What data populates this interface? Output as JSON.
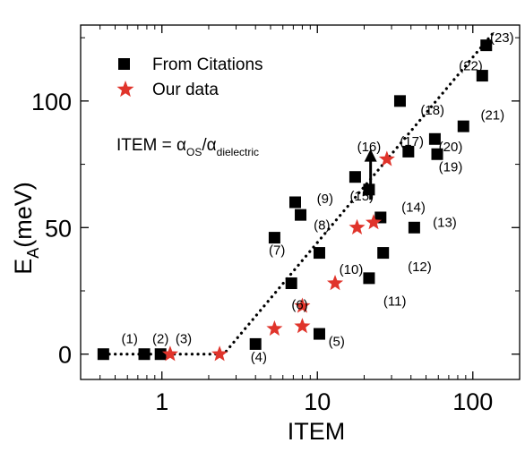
{
  "chart_data": {
    "type": "scatter",
    "xscale": "log",
    "xlim": [
      0.3,
      200
    ],
    "ylim": [
      -10,
      130
    ],
    "xlabel": "ITEM",
    "ylabel": "E",
    "ylabel_sub": "A",
    "ylabel_unit": "(meV)",
    "x_ticks": [
      {
        "value": 1,
        "label": "1"
      },
      {
        "value": 10,
        "label": "10"
      },
      {
        "value": 100,
        "label": "100"
      }
    ],
    "y_ticks": [
      {
        "value": 0,
        "label": "0"
      },
      {
        "value": 50,
        "label": "50"
      },
      {
        "value": 100,
        "label": "100"
      }
    ],
    "legend": {
      "placement": "top-left",
      "entries": [
        {
          "label": "From Citations",
          "marker": "square",
          "color": "#000000"
        },
        {
          "label": "Our data",
          "marker": "star",
          "color": "#e0342b"
        }
      ]
    },
    "equation": {
      "lhs": "ITEM = α",
      "sub1": "OS",
      "mid": "/α",
      "sub2": "dielectric"
    },
    "series": [
      {
        "name": "From Citations",
        "marker": "square",
        "color": "#000000",
        "points": [
          {
            "x": 0.42,
            "y": 0
          },
          {
            "x": 0.77,
            "y": 0
          },
          {
            "x": 0.98,
            "y": 0
          },
          {
            "x": 4.0,
            "y": 4
          },
          {
            "x": 10.3,
            "y": 8
          },
          {
            "x": 5.3,
            "y": 46
          },
          {
            "x": 6.8,
            "y": 28
          },
          {
            "x": 7.2,
            "y": 60
          },
          {
            "x": 7.8,
            "y": 55
          },
          {
            "x": 10.3,
            "y": 40
          },
          {
            "x": 17.5,
            "y": 70
          },
          {
            "x": 21.5,
            "y": 65
          },
          {
            "x": 21.5,
            "y": 30
          },
          {
            "x": 25.5,
            "y": 54
          },
          {
            "x": 26.5,
            "y": 40
          },
          {
            "x": 34,
            "y": 100
          },
          {
            "x": 38.5,
            "y": 80
          },
          {
            "x": 42,
            "y": 50
          },
          {
            "x": 57,
            "y": 85
          },
          {
            "x": 59,
            "y": 79
          },
          {
            "x": 87,
            "y": 90
          },
          {
            "x": 115,
            "y": 110
          },
          {
            "x": 122,
            "y": 122
          }
        ]
      },
      {
        "name": "Our data",
        "marker": "star",
        "color": "#e0342b",
        "points": [
          {
            "x": 1.13,
            "y": 0
          },
          {
            "x": 2.35,
            "y": 0
          },
          {
            "x": 5.3,
            "y": 10
          },
          {
            "x": 8.0,
            "y": 11
          },
          {
            "x": 8.0,
            "y": 19
          },
          {
            "x": 13.0,
            "y": 28
          },
          {
            "x": 18.0,
            "y": 50
          },
          {
            "x": 23.0,
            "y": 52
          },
          {
            "x": 28.0,
            "y": 77
          }
        ]
      }
    ],
    "fit_line": {
      "style": "dotted",
      "color": "#000000",
      "points": [
        {
          "x": 0.42,
          "y": 0
        },
        {
          "x": 2.5,
          "y": 0
        },
        {
          "x": 140,
          "y": 128
        }
      ]
    },
    "arrow": {
      "x": 22.0,
      "y_from": 61,
      "y_to": 81
    },
    "point_labels": [
      {
        "text": "(1)",
        "x": 0.62,
        "y": 6
      },
      {
        "text": "(2)",
        "x": 0.98,
        "y": 6
      },
      {
        "text": "(3)",
        "x": 1.38,
        "y": 6
      },
      {
        "text": "(4)",
        "x": 4.2,
        "y": -1.2
      },
      {
        "text": "(5)",
        "x": 13.3,
        "y": 5
      },
      {
        "text": "(6)",
        "x": 7.7,
        "y": 19.5
      },
      {
        "text": "(7)",
        "x": 5.5,
        "y": 41
      },
      {
        "text": "(8)",
        "x": 10.7,
        "y": 51
      },
      {
        "text": "(9)",
        "x": 11.2,
        "y": 61.5
      },
      {
        "text": "(10)",
        "x": 16.5,
        "y": 33.5
      },
      {
        "text": "(11)",
        "x": 31.5,
        "y": 21
      },
      {
        "text": "(12)",
        "x": 45.5,
        "y": 34.5
      },
      {
        "text": "(13)",
        "x": 66,
        "y": 52
      },
      {
        "text": "(14)",
        "x": 41.5,
        "y": 58
      },
      {
        "text": "(15)",
        "x": 19.3,
        "y": 62.5
      },
      {
        "text": "(16)",
        "x": 21.5,
        "y": 82
      },
      {
        "text": "(17)",
        "x": 40.5,
        "y": 84
      },
      {
        "text": "(18)",
        "x": 55,
        "y": 96.5
      },
      {
        "text": "(19)",
        "x": 72,
        "y": 74
      },
      {
        "text": "(20)",
        "x": 72,
        "y": 82
      },
      {
        "text": "(21)",
        "x": 134,
        "y": 94.5
      },
      {
        "text": "(22)",
        "x": 97,
        "y": 114
      },
      {
        "text": "(23)",
        "x": 154,
        "y": 125
      }
    ]
  }
}
